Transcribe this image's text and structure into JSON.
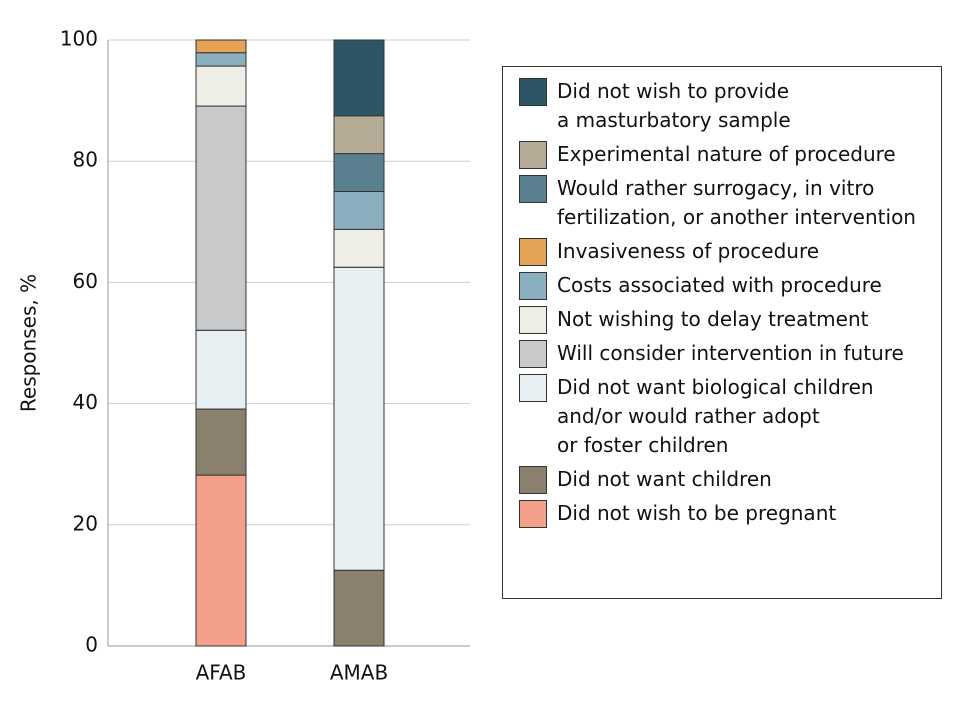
{
  "chart_data": {
    "type": "stacked_bar",
    "y_label": "Responses, %",
    "categories": [
      "AFAB",
      "AMAB"
    ],
    "ylim": [
      0,
      100
    ],
    "yticks": [
      0,
      20,
      40,
      60,
      80,
      100
    ],
    "grid": true,
    "series": [
      {
        "name": "Did not wish to provide\na masturbatory sample",
        "color": "#2d5566",
        "values": [
          0,
          12.5
        ]
      },
      {
        "name": "Experimental nature of procedure",
        "color": "#b5aa96",
        "values": [
          0,
          6.25
        ]
      },
      {
        "name": "Would rather surrogacy, in vitro\nfertilization, or another intervention",
        "color": "#5a8090",
        "values": [
          0,
          6.25
        ]
      },
      {
        "name": "Invasiveness of procedure",
        "color": "#e3a256",
        "values": [
          2.1,
          0
        ]
      },
      {
        "name": "Costs associated with procedure",
        "color": "#8aafbf",
        "values": [
          2.2,
          6.25
        ]
      },
      {
        "name": "Not wishing to delay treatment",
        "color": "#eeeee6",
        "values": [
          6.6,
          6.25
        ]
      },
      {
        "name": "Will consider intervention in future",
        "color": "#c8c9cb",
        "values": [
          37.0,
          0
        ]
      },
      {
        "name": "Did not want biological children\nand/or would rather adopt\nor foster children",
        "color": "#e8eff3",
        "values": [
          13.0,
          50
        ]
      },
      {
        "name": "Did not want children",
        "color": "#8b7f6e",
        "values": [
          10.9,
          12.5
        ]
      },
      {
        "name": "Did not wish to be pregnant",
        "color": "#f2a08a",
        "values": [
          28.2,
          0
        ]
      }
    ]
  }
}
